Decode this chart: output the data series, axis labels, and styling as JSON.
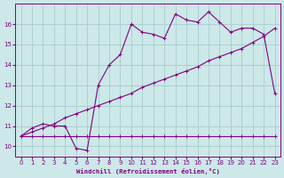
{
  "bg_color": "#cce8e8",
  "line_color": "#800080",
  "grid_color": "#aacccc",
  "xlabel": "Windchill (Refroidissement éolien,°C)",
  "ylabel_ticks": [
    10,
    11,
    12,
    13,
    14,
    15,
    16
  ],
  "xlabel_ticks": [
    0,
    1,
    2,
    3,
    4,
    5,
    6,
    7,
    8,
    9,
    10,
    11,
    12,
    13,
    14,
    15,
    16,
    17,
    18,
    19,
    20,
    21,
    22,
    23
  ],
  "xlim": [
    -0.5,
    23.5
  ],
  "ylim": [
    9.5,
    17.0
  ],
  "curve_flat_x": [
    0,
    1,
    2,
    3,
    4,
    5,
    6,
    7,
    8,
    9,
    10,
    11,
    12,
    13,
    14,
    15,
    16,
    17,
    18,
    19,
    20,
    21,
    22,
    23
  ],
  "curve_flat_y": [
    10.5,
    10.5,
    10.5,
    10.5,
    10.5,
    10.5,
    10.5,
    10.5,
    10.5,
    10.5,
    10.5,
    10.5,
    10.5,
    10.5,
    10.5,
    10.5,
    10.5,
    10.5,
    10.5,
    10.5,
    10.5,
    10.5,
    10.5,
    10.5
  ],
  "curve_linear_x": [
    0,
    1,
    2,
    3,
    4,
    5,
    6,
    7,
    8,
    9,
    10,
    11,
    12,
    13,
    14,
    15,
    16,
    17,
    18,
    19,
    20,
    21,
    22,
    23
  ],
  "curve_linear_y": [
    10.5,
    10.7,
    10.9,
    11.1,
    11.4,
    11.6,
    11.8,
    12.0,
    12.2,
    12.4,
    12.6,
    12.9,
    13.1,
    13.3,
    13.5,
    13.7,
    13.9,
    14.2,
    14.4,
    14.6,
    14.8,
    15.1,
    15.4,
    15.8
  ],
  "curve_wavy_x": [
    0,
    1,
    2,
    3,
    4,
    5,
    6,
    7,
    8,
    9,
    10,
    11,
    12,
    13,
    14,
    15,
    16,
    17,
    18,
    19,
    20,
    21,
    22,
    23
  ],
  "curve_wavy_y": [
    10.5,
    10.9,
    11.1,
    11.0,
    11.0,
    9.9,
    9.8,
    13.0,
    14.0,
    14.5,
    16.0,
    15.6,
    15.5,
    15.3,
    16.5,
    16.2,
    16.1,
    16.6,
    16.1,
    15.6,
    15.8,
    15.8,
    15.5,
    12.6
  ]
}
